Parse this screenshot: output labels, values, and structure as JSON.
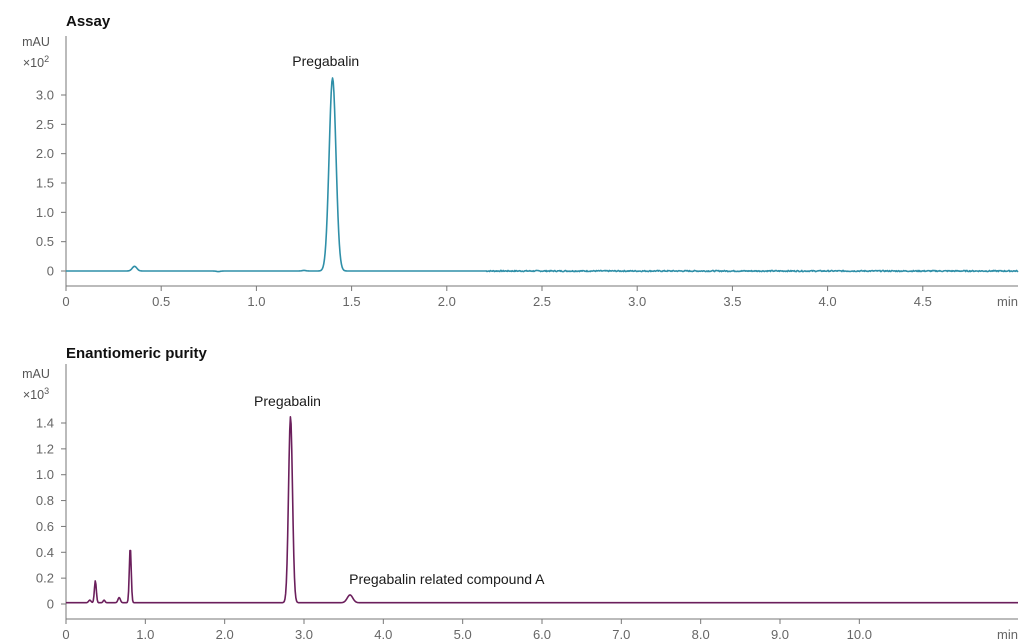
{
  "chart_data": [
    {
      "type": "line",
      "title": "Assay",
      "ylabel": "mAU",
      "y_multiplier_base": "×10",
      "y_multiplier_exp": "2",
      "xlabel": "min",
      "xlim": [
        0,
        5.0
      ],
      "ylim": [
        0,
        3.3
      ],
      "x_ticks": [
        0,
        0.5,
        1.0,
        1.5,
        2.0,
        2.5,
        3.0,
        3.5,
        4.0,
        4.5
      ],
      "x_tick_labels": [
        "0",
        "0.5",
        "1.0",
        "1.5",
        "2.0",
        "2.5",
        "3.0",
        "3.5",
        "4.0",
        "4.5"
      ],
      "y_ticks": [
        0,
        0.5,
        1.0,
        1.5,
        2.0,
        2.5,
        3.0
      ],
      "y_tick_labels": [
        "0",
        "0.5",
        "1.0",
        "1.5",
        "2.0",
        "2.5",
        "3.0"
      ],
      "line_color": "#2f8fa8",
      "baseline": 0.0,
      "peaks": [
        {
          "rt": 0.36,
          "height": 0.08,
          "width": 0.012
        },
        {
          "rt": 0.8,
          "height": -0.01,
          "width": 0.01
        },
        {
          "rt": 1.25,
          "height": 0.01,
          "width": 0.01
        },
        {
          "rt": 1.4,
          "height": 3.29,
          "width": 0.018
        }
      ],
      "annotations": [
        {
          "text": "Pregabalin",
          "x": 1.38,
          "y": 3.29
        }
      ]
    },
    {
      "type": "line",
      "title": "Enantiomeric purity",
      "ylabel": "mAU",
      "y_multiplier_base": "×10",
      "y_multiplier_exp": "3",
      "xlabel": "min",
      "xlim": [
        0,
        12.0
      ],
      "ylim": [
        0,
        1.5
      ],
      "x_ticks": [
        0,
        1.0,
        2.0,
        3.0,
        4.0,
        5.0,
        6.0,
        7.0,
        8.0,
        9.0,
        10.0
      ],
      "x_tick_labels": [
        "0",
        "1.0",
        "2.0",
        "3.0",
        "4.0",
        "5.0",
        "6.0",
        "7.0",
        "8.0",
        "9.0",
        "10.0"
      ],
      "y_ticks": [
        0,
        0.2,
        0.4,
        0.6,
        0.8,
        1.0,
        1.2,
        1.4
      ],
      "y_tick_labels": [
        "0",
        "0.2",
        "0.4",
        "0.6",
        "0.8",
        "1.0",
        "1.2",
        "1.4"
      ],
      "line_color": "#6b1f5c",
      "baseline": 0.01,
      "peaks": [
        {
          "rt": 0.3,
          "height": 0.02,
          "width": 0.015
        },
        {
          "rt": 0.37,
          "height": 0.17,
          "width": 0.012
        },
        {
          "rt": 0.48,
          "height": 0.02,
          "width": 0.012
        },
        {
          "rt": 0.67,
          "height": 0.04,
          "width": 0.015
        },
        {
          "rt": 0.81,
          "height": 0.43,
          "width": 0.012
        },
        {
          "rt": 2.83,
          "height": 1.44,
          "width": 0.025
        },
        {
          "rt": 3.58,
          "height": 0.06,
          "width": 0.035
        }
      ],
      "annotations": [
        {
          "text": "Pregabalin",
          "x": 2.83,
          "y": 1.44
        },
        {
          "text": "Pregabalin related compound A",
          "x": 4.8,
          "y": 0.06
        }
      ]
    }
  ]
}
